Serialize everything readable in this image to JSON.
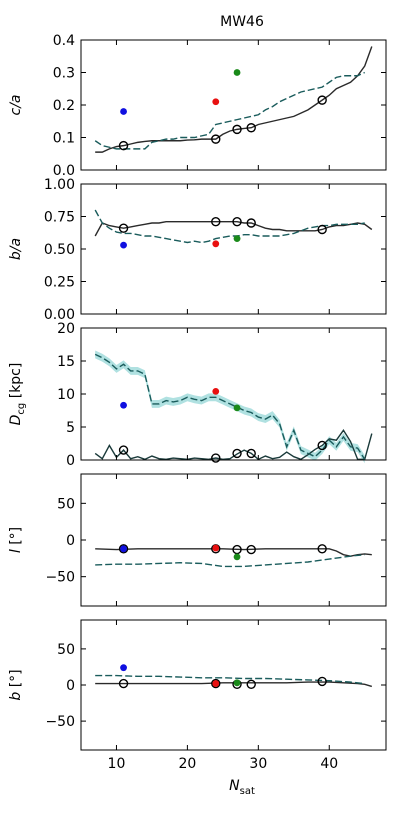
{
  "title": "MW46",
  "xlabel": "N_sat",
  "x_ticks": [
    10,
    20,
    30,
    40
  ],
  "chart_data": [
    {
      "type": "line",
      "ylabel": "c/a",
      "ylim": [
        0,
        0.4
      ],
      "yticks": [
        0,
        0.1,
        0.2,
        0.3,
        0.4
      ],
      "ytick_labels": [
        "0.0",
        "0.1",
        "0.2",
        "0.3",
        "0.4"
      ],
      "series": [
        {
          "style": "solid",
          "color": "#2a2a2a",
          "x": [
            7,
            8,
            9,
            10,
            11,
            12,
            13,
            14,
            15,
            16,
            17,
            18,
            19,
            20,
            21,
            22,
            23,
            24,
            25,
            26,
            27,
            28,
            29,
            30,
            31,
            32,
            33,
            34,
            35,
            36,
            37,
            38,
            39,
            40,
            41,
            42,
            43,
            44,
            45,
            46
          ],
          "y": [
            0.055,
            0.055,
            0.065,
            0.072,
            0.075,
            0.08,
            0.085,
            0.088,
            0.09,
            0.09,
            0.09,
            0.09,
            0.09,
            0.092,
            0.093,
            0.095,
            0.095,
            0.095,
            0.11,
            0.12,
            0.125,
            0.128,
            0.13,
            0.14,
            0.145,
            0.15,
            0.155,
            0.16,
            0.165,
            0.175,
            0.185,
            0.2,
            0.215,
            0.23,
            0.25,
            0.26,
            0.27,
            0.29,
            0.32,
            0.38
          ]
        },
        {
          "style": "dashed",
          "color": "#1a5c5c",
          "x": [
            7,
            8,
            9,
            10,
            11,
            12,
            13,
            14,
            15,
            16,
            17,
            18,
            19,
            20,
            21,
            22,
            23,
            24,
            25,
            26,
            27,
            28,
            29,
            30,
            31,
            32,
            33,
            34,
            35,
            36,
            37,
            38,
            39,
            40,
            41,
            42,
            43,
            44,
            45
          ],
          "y": [
            0.09,
            0.075,
            0.07,
            0.065,
            0.065,
            0.065,
            0.065,
            0.065,
            0.085,
            0.09,
            0.095,
            0.095,
            0.1,
            0.1,
            0.1,
            0.105,
            0.11,
            0.14,
            0.145,
            0.15,
            0.155,
            0.16,
            0.165,
            0.17,
            0.185,
            0.195,
            0.21,
            0.22,
            0.23,
            0.24,
            0.245,
            0.25,
            0.255,
            0.27,
            0.285,
            0.29,
            0.29,
            0.29,
            0.3
          ]
        }
      ],
      "open_points": {
        "x": [
          11,
          24,
          27,
          29,
          39
        ],
        "y": [
          0.075,
          0.095,
          0.125,
          0.13,
          0.215
        ]
      },
      "colored_points": [
        {
          "x": 11,
          "y": 0.18,
          "color": "#1010e0"
        },
        {
          "x": 24,
          "y": 0.21,
          "color": "#e81010"
        },
        {
          "x": 27,
          "y": 0.3,
          "color": "#1a8a1a"
        }
      ]
    },
    {
      "type": "line",
      "ylabel": "b/a",
      "ylim": [
        0,
        1.0
      ],
      "yticks": [
        0,
        0.25,
        0.5,
        0.75,
        1.0
      ],
      "ytick_labels": [
        "0.00",
        "0.25",
        "0.50",
        "0.75",
        "1.00"
      ],
      "series": [
        {
          "style": "solid",
          "color": "#2a2a2a",
          "x": [
            7,
            8,
            9,
            10,
            11,
            12,
            13,
            14,
            15,
            16,
            17,
            18,
            19,
            20,
            21,
            22,
            23,
            24,
            25,
            26,
            27,
            28,
            29,
            30,
            31,
            32,
            33,
            34,
            35,
            36,
            37,
            38,
            39,
            40,
            41,
            42,
            43,
            44,
            45,
            46
          ],
          "y": [
            0.6,
            0.7,
            0.68,
            0.67,
            0.66,
            0.67,
            0.68,
            0.69,
            0.7,
            0.7,
            0.71,
            0.71,
            0.71,
            0.71,
            0.71,
            0.71,
            0.71,
            0.71,
            0.71,
            0.71,
            0.71,
            0.7,
            0.7,
            0.68,
            0.66,
            0.65,
            0.65,
            0.64,
            0.64,
            0.64,
            0.64,
            0.64,
            0.65,
            0.67,
            0.68,
            0.68,
            0.69,
            0.7,
            0.69,
            0.65
          ]
        },
        {
          "style": "dashed",
          "color": "#1a5c5c",
          "x": [
            7,
            8,
            9,
            10,
            11,
            12,
            13,
            14,
            15,
            16,
            17,
            18,
            19,
            20,
            21,
            22,
            23,
            24,
            25,
            26,
            27,
            28,
            29,
            30,
            31,
            32,
            33,
            34,
            35,
            36,
            37,
            38,
            39,
            40,
            41,
            42,
            43,
            44,
            45
          ],
          "y": [
            0.8,
            0.7,
            0.66,
            0.63,
            0.62,
            0.62,
            0.61,
            0.6,
            0.6,
            0.59,
            0.58,
            0.57,
            0.56,
            0.55,
            0.56,
            0.55,
            0.56,
            0.58,
            0.59,
            0.6,
            0.6,
            0.61,
            0.61,
            0.6,
            0.6,
            0.6,
            0.6,
            0.61,
            0.62,
            0.64,
            0.66,
            0.67,
            0.68,
            0.68,
            0.69,
            0.69,
            0.69,
            0.69,
            0.7
          ]
        }
      ],
      "open_points": {
        "x": [
          11,
          24,
          27,
          29,
          39
        ],
        "y": [
          0.66,
          0.71,
          0.71,
          0.7,
          0.65
        ]
      },
      "colored_points": [
        {
          "x": 11,
          "y": 0.53,
          "color": "#1010e0"
        },
        {
          "x": 24,
          "y": 0.54,
          "color": "#e81010"
        },
        {
          "x": 27,
          "y": 0.58,
          "color": "#1a8a1a"
        }
      ]
    },
    {
      "type": "line",
      "ylabel": "D_cg [kpc]",
      "ylim": [
        0,
        20
      ],
      "yticks": [
        0,
        5,
        10,
        15,
        20
      ],
      "ytick_labels": [
        "0",
        "5",
        "10",
        "15",
        "20"
      ],
      "series": [
        {
          "style": "solid",
          "color": "#1a3a3a",
          "x": [
            7,
            8,
            9,
            10,
            11,
            12,
            13,
            14,
            15,
            16,
            17,
            18,
            19,
            20,
            21,
            22,
            23,
            24,
            25,
            26,
            27,
            28,
            29,
            30,
            31,
            32,
            33,
            34,
            35,
            36,
            37,
            38,
            39,
            40,
            41,
            42,
            43,
            44,
            45,
            46
          ],
          "y": [
            1.0,
            0.2,
            2.2,
            0.4,
            1.5,
            0.2,
            0.5,
            0.1,
            0.6,
            0.2,
            0.1,
            0.3,
            0.2,
            0.1,
            0.3,
            0.2,
            0.1,
            0.3,
            0.1,
            0.2,
            0.9,
            1.5,
            1.0,
            0.1,
            0.6,
            0.2,
            0.4,
            1.2,
            0.5,
            0.1,
            0.8,
            1.6,
            2.2,
            3.2,
            3.0,
            4.5,
            2.8,
            0.1,
            0.1,
            4.0
          ]
        },
        {
          "style": "dashed",
          "color": "#1a5c5c",
          "band_color": "#8fd4d4",
          "x": [
            7,
            8,
            9,
            10,
            11,
            12,
            13,
            14,
            15,
            16,
            17,
            18,
            19,
            20,
            21,
            22,
            23,
            24,
            25,
            26,
            27,
            28,
            29,
            30,
            31,
            32,
            33,
            34,
            35,
            36,
            37,
            38,
            39,
            40,
            41,
            42,
            43,
            44,
            45
          ],
          "y": [
            16.0,
            15.5,
            14.8,
            13.8,
            14.5,
            13.5,
            13.5,
            13.0,
            8.5,
            8.5,
            9.0,
            8.8,
            9.0,
            9.5,
            9.2,
            9.0,
            9.5,
            9.5,
            9.0,
            8.5,
            8.0,
            7.5,
            7.2,
            6.5,
            6.2,
            6.8,
            5.5,
            2.0,
            4.5,
            1.5,
            1.0,
            0.5,
            1.5,
            3.0,
            2.0,
            3.5,
            2.0,
            1.8,
            0.1
          ]
        }
      ],
      "open_points": {
        "x": [
          11,
          24,
          27,
          29,
          39
        ],
        "y": [
          1.5,
          0.3,
          1.0,
          1.0,
          2.2
        ]
      },
      "colored_points": [
        {
          "x": 11,
          "y": 8.3,
          "color": "#1010e0"
        },
        {
          "x": 24,
          "y": 10.4,
          "color": "#e81010"
        },
        {
          "x": 27,
          "y": 7.9,
          "color": "#1a8a1a"
        }
      ]
    },
    {
      "type": "line",
      "ylabel": "l [°]",
      "ylim": [
        -90,
        90
      ],
      "yticks": [
        -50,
        0,
        50
      ],
      "ytick_labels": [
        "−50",
        "0",
        "50"
      ],
      "series": [
        {
          "style": "solid",
          "color": "#2a2a2a",
          "x": [
            7,
            10,
            13,
            16,
            19,
            22,
            25,
            28,
            31,
            34,
            37,
            40,
            41,
            42,
            43,
            44,
            45,
            46
          ],
          "y": [
            -12,
            -13,
            -12,
            -12,
            -12,
            -12,
            -12,
            -13,
            -12,
            -12,
            -12,
            -12,
            -15,
            -20,
            -22,
            -20,
            -19,
            -20
          ]
        },
        {
          "style": "dashed",
          "color": "#1a5c5c",
          "x": [
            7,
            10,
            13,
            16,
            19,
            22,
            25,
            28,
            31,
            34,
            37,
            40,
            43,
            45
          ],
          "y": [
            -34,
            -33,
            -33,
            -32,
            -31,
            -32,
            -36,
            -36,
            -34,
            -32,
            -30,
            -26,
            -22,
            -20
          ]
        }
      ],
      "open_points": {
        "x": [
          11,
          24,
          27,
          29,
          39
        ],
        "y": [
          -12,
          -12,
          -13,
          -13,
          -12
        ]
      },
      "colored_points": [
        {
          "x": 11,
          "y": -12,
          "color": "#1010e0"
        },
        {
          "x": 24,
          "y": -11,
          "color": "#e81010"
        },
        {
          "x": 27,
          "y": -23,
          "color": "#1a8a1a"
        }
      ]
    },
    {
      "type": "line",
      "ylabel": "b [°]",
      "ylim": [
        -90,
        90
      ],
      "yticks": [
        -50,
        0,
        50
      ],
      "ytick_labels": [
        "−50",
        "0",
        "50"
      ],
      "series": [
        {
          "style": "solid",
          "color": "#2a2a2a",
          "x": [
            7,
            10,
            13,
            16,
            19,
            22,
            25,
            28,
            31,
            34,
            37,
            40,
            42,
            44,
            45,
            46
          ],
          "y": [
            2,
            2,
            2,
            2,
            2,
            2,
            3,
            3,
            3,
            3,
            4,
            4,
            3,
            2,
            1,
            -2
          ]
        },
        {
          "style": "dashed",
          "color": "#1a5c5c",
          "x": [
            7,
            10,
            13,
            16,
            19,
            22,
            25,
            28,
            31,
            34,
            37,
            40,
            43,
            45
          ],
          "y": [
            13,
            13,
            12,
            12,
            11,
            10,
            10,
            9,
            9,
            8,
            7,
            6,
            4,
            2
          ]
        }
      ],
      "open_points": {
        "x": [
          11,
          24,
          27,
          29,
          39
        ],
        "y": [
          2,
          2,
          1,
          1,
          5
        ]
      },
      "colored_points": [
        {
          "x": 11,
          "y": 24,
          "color": "#1010e0"
        },
        {
          "x": 24,
          "y": 2,
          "color": "#e81010"
        },
        {
          "x": 27,
          "y": 3,
          "color": "#1a8a1a"
        }
      ]
    }
  ]
}
